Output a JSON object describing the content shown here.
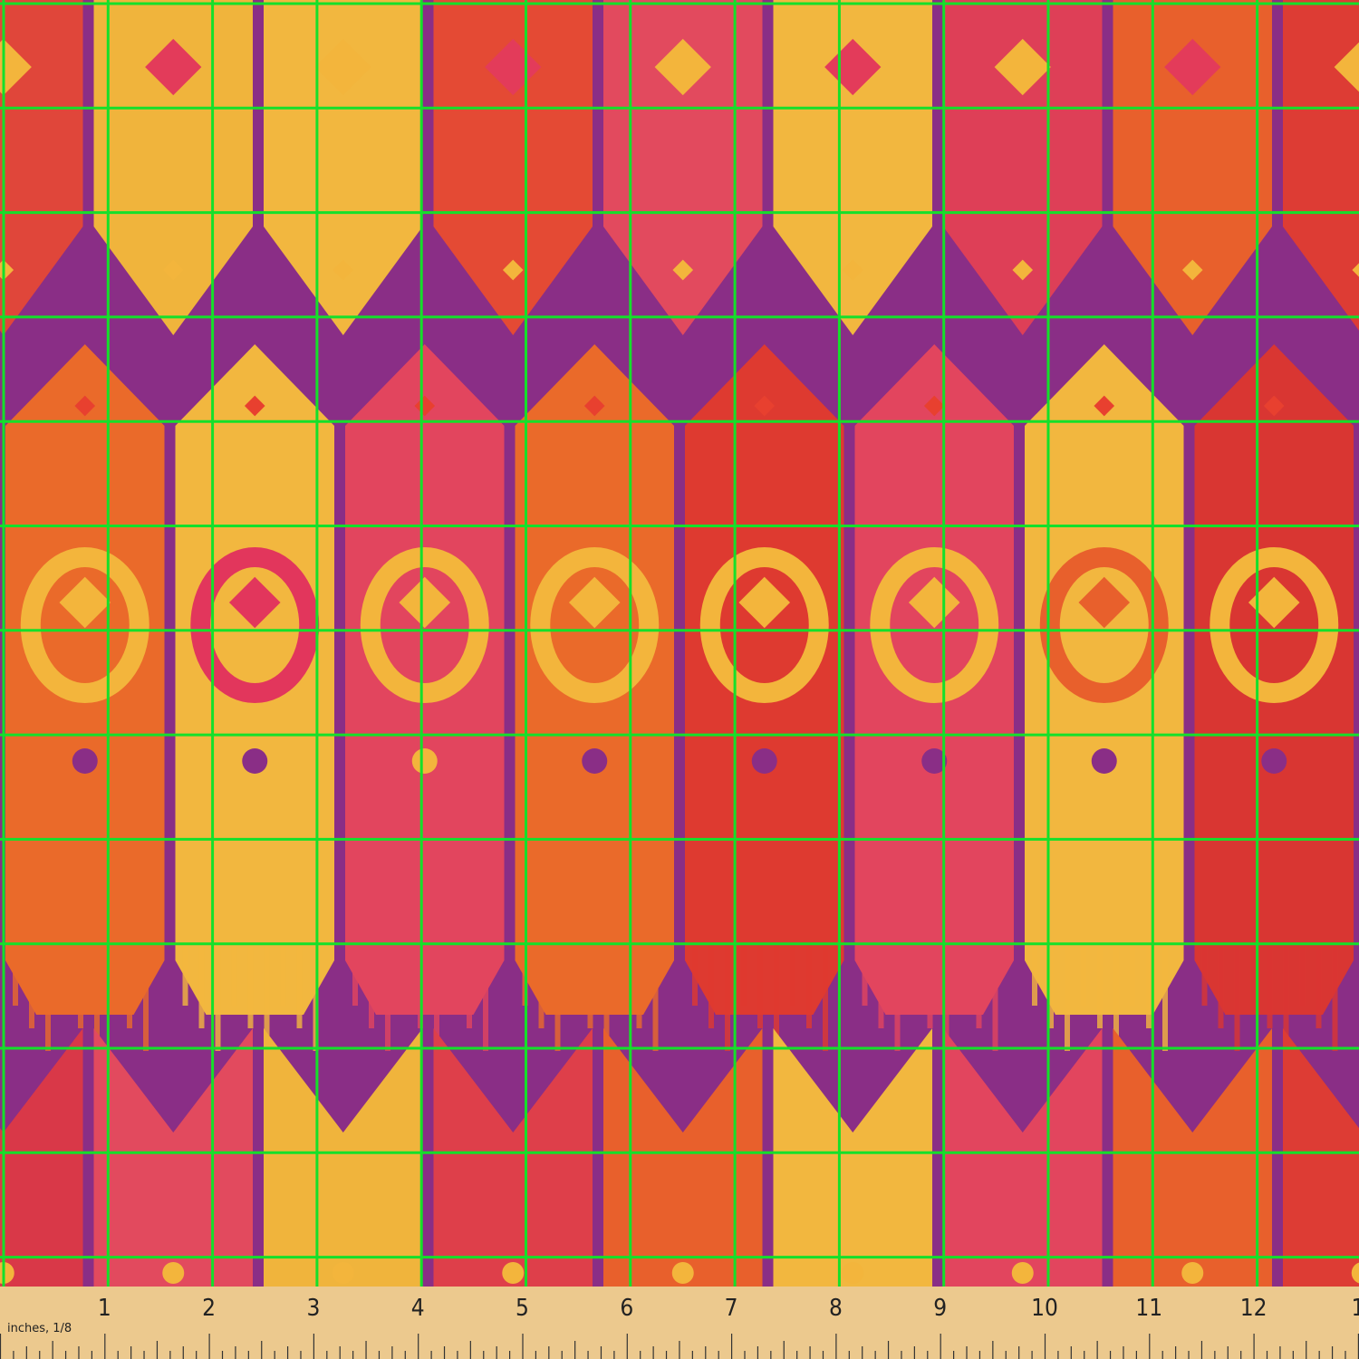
{
  "ruler": {
    "labels": [
      "1",
      "2",
      "3",
      "4",
      "5",
      "6",
      "7",
      "8",
      "9",
      "10",
      "11",
      "12",
      "1"
    ],
    "unit_label": "inches, 1/8"
  }
}
